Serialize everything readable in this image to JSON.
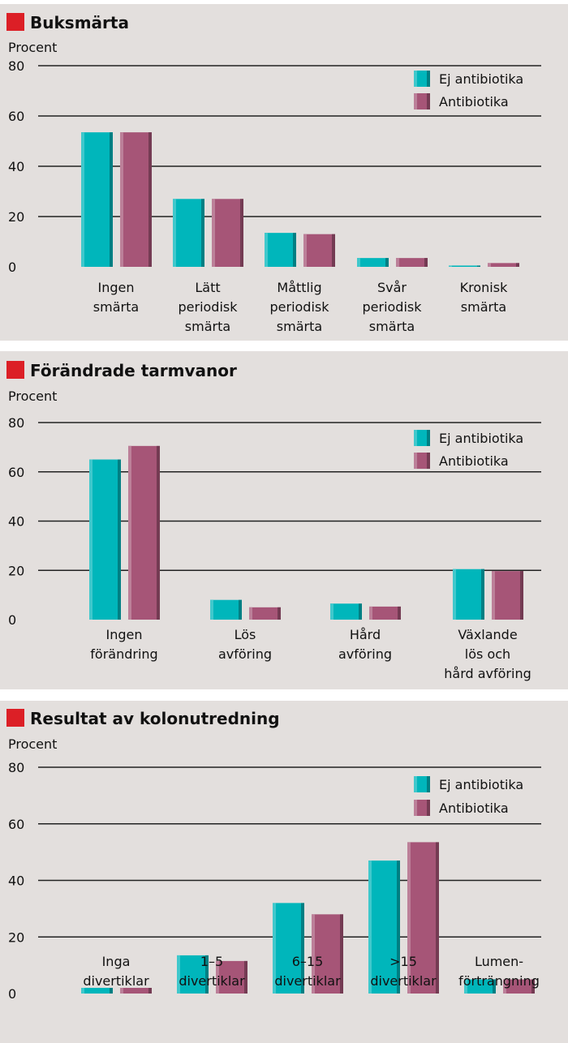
{
  "colors": {
    "background": "#e3dfdd",
    "title_marker": "#dc1f26",
    "ej_antibiotika": "#00b6bb",
    "antibiotika": "#a65577",
    "gridline": "#222222"
  },
  "chart_data": [
    {
      "type": "bar",
      "title": "Buksmärta",
      "ylabel": "Procent",
      "ylim": [
        0,
        80
      ],
      "yticks": [
        0,
        20,
        40,
        60,
        80
      ],
      "grid": true,
      "legend": "top-right",
      "categories": [
        [
          "Ingen",
          "smärta"
        ],
        [
          "Lätt",
          "periodisk",
          "smärta"
        ],
        [
          "Måttlig",
          "periodisk",
          "smärta"
        ],
        [
          "Svår",
          "periodisk",
          "smärta"
        ],
        [
          "Kronisk",
          "smärta"
        ]
      ],
      "series": [
        {
          "name": "Ej antibiotika",
          "values": [
            53.5,
            27,
            13.5,
            3.5,
            0.5
          ]
        },
        {
          "name": "Antibiotika",
          "values": [
            53.5,
            27,
            13,
            3.5,
            1.5
          ]
        }
      ]
    },
    {
      "type": "bar",
      "title": "Förändrade tarmvanor",
      "ylabel": "Procent",
      "ylim": [
        0,
        80
      ],
      "yticks": [
        0,
        20,
        40,
        60,
        80
      ],
      "grid": true,
      "legend": "top-right",
      "categories": [
        [
          "Ingen",
          "förändring"
        ],
        [
          "Lös",
          "avföring"
        ],
        [
          "Hård",
          "avföring"
        ],
        [
          "Växlande",
          "lös och",
          "hård avföring"
        ]
      ],
      "series": [
        {
          "name": "Ej antibiotika",
          "values": [
            65,
            8,
            6.5,
            20.5
          ]
        },
        {
          "name": "Antibiotika",
          "values": [
            70.5,
            5,
            5.3,
            19.7
          ]
        }
      ]
    },
    {
      "type": "bar",
      "title": "Resultat av kolonutredning",
      "ylabel": "Procent",
      "ylim": [
        0,
        80
      ],
      "yticks": [
        0,
        20,
        40,
        60,
        80
      ],
      "grid": true,
      "legend": "top-right",
      "categories": [
        [
          "Inga",
          "divertiklar"
        ],
        [
          "1–5",
          "divertiklar"
        ],
        [
          "6–15",
          "divertiklar"
        ],
        [
          ">15",
          "divertiklar"
        ],
        [
          "Lumen-",
          "förträngning"
        ]
      ],
      "series": [
        {
          "name": "Ej antibiotika",
          "values": [
            2,
            13.5,
            32,
            47,
            5
          ]
        },
        {
          "name": "Antibiotika",
          "values": [
            2,
            11.5,
            28,
            53.5,
            5
          ]
        }
      ]
    }
  ]
}
